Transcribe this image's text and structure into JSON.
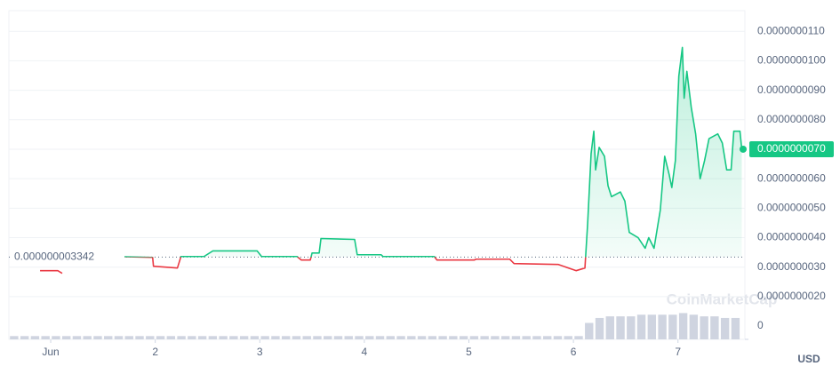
{
  "chart_data": {
    "type": "line",
    "series": [
      {
        "name": "Price",
        "up_color": "#16c784",
        "down_color": "#ea3943",
        "x": [
          0.898,
          1.068,
          1.11,
          1.3,
          1.492,
          1.619,
          1.975,
          1.983,
          2.212,
          2.246,
          2.466,
          2.551,
          2.975,
          3.017,
          3.356,
          3.398,
          3.483,
          3.5,
          3.568,
          3.585,
          3.907,
          3.932,
          4.161,
          4.178,
          4.669,
          4.695,
          5.051,
          5.068,
          5.39,
          5.432,
          5.856,
          6.025,
          6.11,
          6.136,
          6.169,
          6.195,
          6.212,
          6.246,
          6.297,
          6.331,
          6.364,
          6.449,
          6.492,
          6.534,
          6.619,
          6.686,
          6.72,
          6.771,
          6.831,
          6.873,
          6.915,
          6.941,
          6.975,
          7.008,
          7.042,
          7.059,
          7.085,
          7.127,
          7.169,
          7.212,
          7.254,
          7.297,
          7.381,
          7.424,
          7.466,
          7.508,
          7.534,
          7.593,
          7.61
        ],
        "values": [
          2.88e-09,
          2.88e-09,
          2.79e-09,
          null,
          3.42e-09,
          3.36e-09,
          3.33e-09,
          3.03e-09,
          2.97e-09,
          3.36e-09,
          3.36e-09,
          3.55e-09,
          3.55e-09,
          3.36e-09,
          3.36e-09,
          3.24e-09,
          3.24e-09,
          3.48e-09,
          3.48e-09,
          3.97e-09,
          3.94e-09,
          3.42e-09,
          3.42e-09,
          3.36e-09,
          3.36e-09,
          3.24e-09,
          3.24e-09,
          3.27e-09,
          3.27e-09,
          3.12e-09,
          3.09e-09,
          2.88e-09,
          2.97e-09,
          4.48e-09,
          6.85e-09,
          7.61e-09,
          6.3e-09,
          7.06e-09,
          6.76e-09,
          5.76e-09,
          5.39e-09,
          5.55e-09,
          5.24e-09,
          4.18e-09,
          4e-09,
          3.64e-09,
          4e-09,
          3.64e-09,
          4.94e-09,
          6.76e-09,
          6.15e-09,
          5.7e-09,
          6.61e-09,
          9.48e-09,
          1.045e-08,
          8.73e-09,
          9.64e-09,
          8.42e-09,
          7.52e-09,
          6e-09,
          6.61e-09,
          7.36e-09,
          7.52e-09,
          7.21e-09,
          6.3e-09,
          6.3e-09,
          7.61e-09,
          7.61e-09,
          7e-09
        ]
      },
      {
        "name": "Volume",
        "axis": "y2",
        "color": "#cfd4e0",
        "x": [
          0.65,
          0.75,
          0.85,
          0.95,
          1.05,
          1.15,
          1.25,
          1.35,
          1.45,
          1.55,
          1.65,
          1.75,
          1.85,
          1.95,
          2.05,
          2.15,
          2.25,
          2.35,
          2.45,
          2.55,
          2.65,
          2.75,
          2.85,
          2.95,
          3.05,
          3.15,
          3.25,
          3.35,
          3.45,
          3.55,
          3.65,
          3.75,
          3.85,
          3.95,
          4.05,
          4.15,
          4.25,
          4.35,
          4.45,
          4.55,
          4.65,
          4.75,
          4.85,
          4.95,
          5.05,
          5.15,
          5.25,
          5.35,
          5.45,
          5.55,
          5.65,
          5.75,
          5.85,
          5.95,
          6.05,
          6.15,
          6.25,
          6.35,
          6.45,
          6.55,
          6.65,
          6.75,
          6.85,
          6.95,
          7.05,
          7.15,
          7.25,
          7.35,
          7.45,
          7.55
        ],
        "values": [
          1,
          1,
          1,
          1,
          1,
          1,
          1,
          1,
          1,
          1,
          1,
          1,
          1,
          1,
          1,
          1,
          1,
          1,
          1,
          1,
          1,
          1,
          1,
          1,
          1,
          1,
          1,
          1,
          1,
          1,
          1,
          1,
          1,
          1,
          1,
          1,
          1,
          1,
          1,
          1,
          1,
          1,
          1,
          1,
          1,
          1,
          1,
          1,
          1,
          1,
          1,
          1,
          1,
          1,
          1,
          5,
          6.5,
          7,
          7,
          7,
          7.5,
          7.5,
          7.5,
          7.5,
          8,
          7.5,
          7,
          7,
          6.5,
          6.5
        ]
      }
    ],
    "xlim": [
      0.6,
      7.64
    ],
    "xticks": [
      {
        "value": 1,
        "label": "Jun"
      },
      2,
      3,
      4,
      5,
      6,
      7
    ],
    "ylim": [
      5.5e-10,
      1.17e-08
    ],
    "yticks": [
      {
        "value": 2e-09,
        "label": "0.0000000020"
      },
      {
        "value": 3e-09,
        "label": "0.0000000030"
      },
      {
        "value": 4e-09,
        "label": "0.0000000040"
      },
      {
        "value": 5e-09,
        "label": "0.0000000050"
      },
      {
        "value": 6e-09,
        "label": "0.0000000060"
      },
      {
        "value": 7e-09,
        "label": "0.0000000070"
      },
      {
        "value": 8e-09,
        "label": "0.0000000080"
      },
      {
        "value": 9e-09,
        "label": "0.0000000090"
      },
      {
        "value": 1e-08,
        "label": "0.0000000100"
      },
      {
        "value": 1.1e-08,
        "label": "0.0000000110"
      }
    ],
    "y2lim": [
      0,
      100
    ],
    "y2ticks": [
      0
    ],
    "reference": {
      "value": 3.342e-09,
      "label": "0.000000003342"
    },
    "current_price": {
      "value": 7e-09,
      "label": "0.0000000070"
    },
    "currency": "USD",
    "watermark": "CoinMarketCap",
    "grid": true
  }
}
